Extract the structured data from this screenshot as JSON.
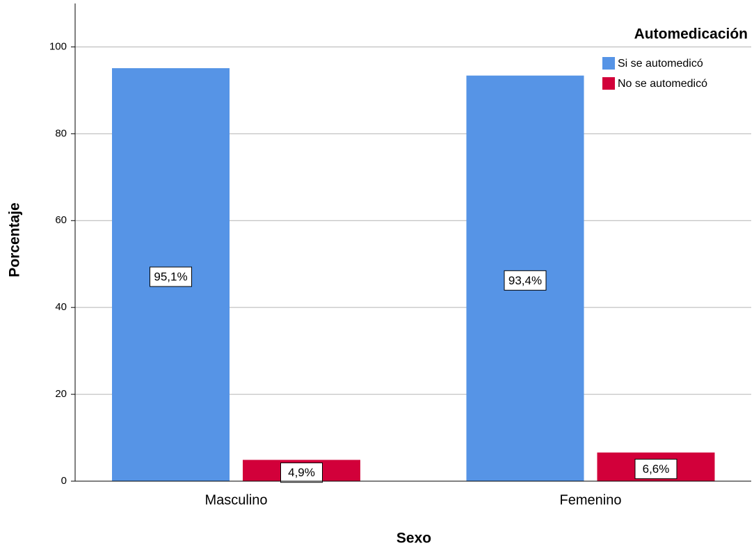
{
  "chart_data": {
    "type": "bar",
    "categories": [
      "Masculino",
      "Femenino"
    ],
    "series": [
      {
        "name": "Si se automedicó",
        "color": "#5694e6",
        "values": [
          95.1,
          93.4
        ],
        "value_labels": [
          "95,1%",
          "93,4%"
        ]
      },
      {
        "name": "No se automedicó",
        "color": "#d2003a",
        "values": [
          4.9,
          6.6
        ],
        "value_labels": [
          "4,9%",
          "6,6%"
        ]
      }
    ],
    "xlabel": "Sexo",
    "ylabel": "Porcentaje",
    "legend_title": "Automedicación",
    "legend": "top-right",
    "ylim": [
      0,
      110
    ],
    "yticks": [
      0,
      20,
      40,
      60,
      80,
      100
    ],
    "grid": true
  }
}
